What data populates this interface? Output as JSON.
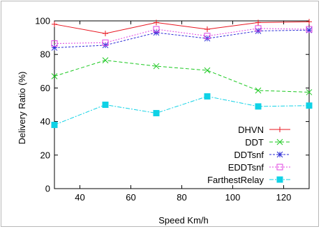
{
  "chart_data": {
    "type": "line",
    "title": "",
    "xlabel": "Speed Km/h",
    "ylabel": "Delivery Ratio (%)",
    "xlim": [
      30,
      130
    ],
    "ylim": [
      0,
      100
    ],
    "xticks": [
      40,
      60,
      80,
      100,
      120
    ],
    "yticks": [
      0,
      20,
      40,
      60,
      80,
      100
    ],
    "grid": false,
    "legend": "bottom-right",
    "x": [
      30,
      50,
      70,
      90,
      110,
      130
    ],
    "series": [
      {
        "name": "DHVN",
        "values": [
          98,
          92.5,
          99,
          95,
          99,
          99.5
        ],
        "color": "#e8141e",
        "marker": "plus"
      },
      {
        "name": "DDT",
        "values": [
          67,
          76.5,
          73,
          70.5,
          58.5,
          57.5
        ],
        "color": "#19c81e",
        "marker": "cross"
      },
      {
        "name": "DDTsnf",
        "values": [
          84,
          85.5,
          93,
          89.5,
          94,
          94.5
        ],
        "color": "#2a2ad6",
        "marker": "star"
      },
      {
        "name": "EDDTsnf",
        "values": [
          86.5,
          87,
          95,
          91,
          95.5,
          95
        ],
        "color": "#e040e0",
        "marker": "square-open"
      },
      {
        "name": "FarthestRelay",
        "values": [
          38,
          50,
          45,
          55,
          49,
          49.5
        ],
        "color": "#10d2e6",
        "marker": "square-filled"
      }
    ]
  }
}
